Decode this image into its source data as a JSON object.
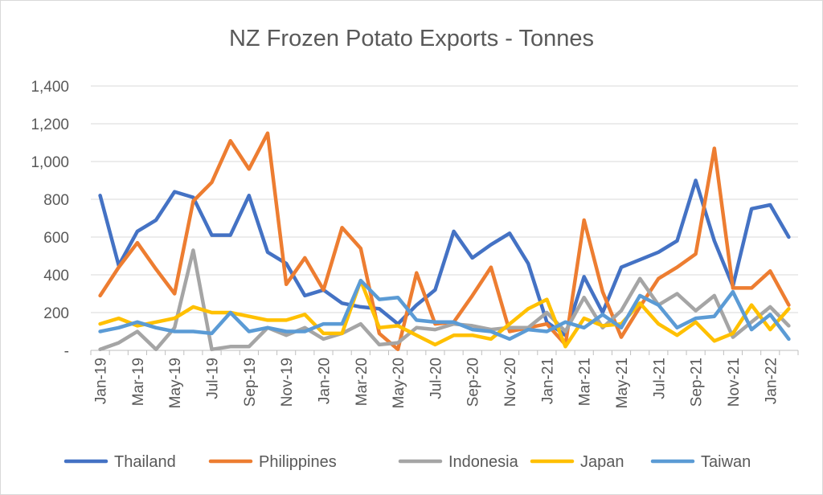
{
  "chart_data": {
    "type": "line",
    "title": "NZ Frozen Potato Exports - Tonnes",
    "xlabel": "",
    "ylabel": "",
    "ylim": [
      0,
      1400
    ],
    "yticks": [
      {
        "value": 0,
        "label": "-"
      },
      {
        "value": 200,
        "label": "200"
      },
      {
        "value": 400,
        "label": "400"
      },
      {
        "value": 600,
        "label": "600"
      },
      {
        "value": 800,
        "label": "800"
      },
      {
        "value": 1000,
        "label": "1,000"
      },
      {
        "value": 1200,
        "label": "1,200"
      },
      {
        "value": 1400,
        "label": "1,400"
      }
    ],
    "grid": "horizontal",
    "legend": "bottom",
    "categories": [
      "Jan-19",
      "Feb-19",
      "Mar-19",
      "Apr-19",
      "May-19",
      "Jun-19",
      "Jul-19",
      "Aug-19",
      "Sep-19",
      "Oct-19",
      "Nov-19",
      "Dec-19",
      "Jan-20",
      "Feb-20",
      "Mar-20",
      "Apr-20",
      "May-20",
      "Jun-20",
      "Jul-20",
      "Aug-20",
      "Sep-20",
      "Oct-20",
      "Nov-20",
      "Dec-20",
      "Jan-21",
      "Feb-21",
      "Mar-21",
      "Apr-21",
      "May-21",
      "Jun-21",
      "Jul-21",
      "Aug-21",
      "Sep-21",
      "Oct-21",
      "Nov-21",
      "Dec-21",
      "Jan-22",
      "Feb-22"
    ],
    "tick_labels": [
      "Jan-19",
      "Mar-19",
      "May-19",
      "Jul-19",
      "Sep-19",
      "Nov-19",
      "Jan-20",
      "Mar-20",
      "May-20",
      "Jul-20",
      "Sep-20",
      "Nov-20",
      "Jan-21",
      "Mar-21",
      "May-21",
      "Jul-21",
      "Sep-21",
      "Nov-21",
      "Jan-22"
    ],
    "series": [
      {
        "name": "Thailand",
        "color": "#4472c4",
        "values": [
          820,
          450,
          630,
          690,
          840,
          810,
          610,
          610,
          820,
          520,
          460,
          290,
          320,
          250,
          230,
          220,
          140,
          240,
          320,
          630,
          490,
          560,
          620,
          460,
          150,
          80,
          390,
          200,
          440,
          480,
          520,
          580,
          900,
          580,
          340,
          750,
          770,
          600
        ]
      },
      {
        "name": "Philippines",
        "color": "#ed7d31",
        "values": [
          290,
          440,
          570,
          430,
          300,
          790,
          890,
          1110,
          960,
          1150,
          350,
          490,
          320,
          650,
          540,
          90,
          5,
          410,
          140,
          150,
          290,
          440,
          100,
          120,
          140,
          30,
          690,
          310,
          70,
          230,
          380,
          440,
          510,
          1070,
          330,
          330,
          420,
          240
        ]
      },
      {
        "name": "Indonesia",
        "color": "#a5a5a5",
        "values": [
          5,
          40,
          100,
          5,
          120,
          530,
          5,
          20,
          20,
          120,
          80,
          120,
          60,
          90,
          140,
          30,
          40,
          120,
          110,
          140,
          130,
          110,
          120,
          120,
          200,
          100,
          280,
          120,
          210,
          380,
          240,
          300,
          210,
          290,
          70,
          150,
          230,
          130
        ]
      },
      {
        "name": "Japan",
        "color": "#ffc000",
        "values": [
          140,
          170,
          130,
          150,
          170,
          230,
          200,
          200,
          180,
          160,
          160,
          190,
          90,
          90,
          370,
          120,
          130,
          80,
          30,
          80,
          80,
          60,
          140,
          220,
          270,
          20,
          170,
          130,
          140,
          250,
          140,
          80,
          150,
          50,
          90,
          240,
          110,
          220
        ]
      },
      {
        "name": "Taiwan",
        "color": "#5b9bd5",
        "values": [
          100,
          120,
          150,
          120,
          100,
          100,
          90,
          200,
          100,
          120,
          100,
          100,
          140,
          140,
          370,
          270,
          280,
          160,
          150,
          150,
          110,
          100,
          60,
          110,
          100,
          150,
          120,
          190,
          120,
          290,
          240,
          120,
          170,
          180,
          310,
          110,
          190,
          60
        ]
      }
    ]
  }
}
